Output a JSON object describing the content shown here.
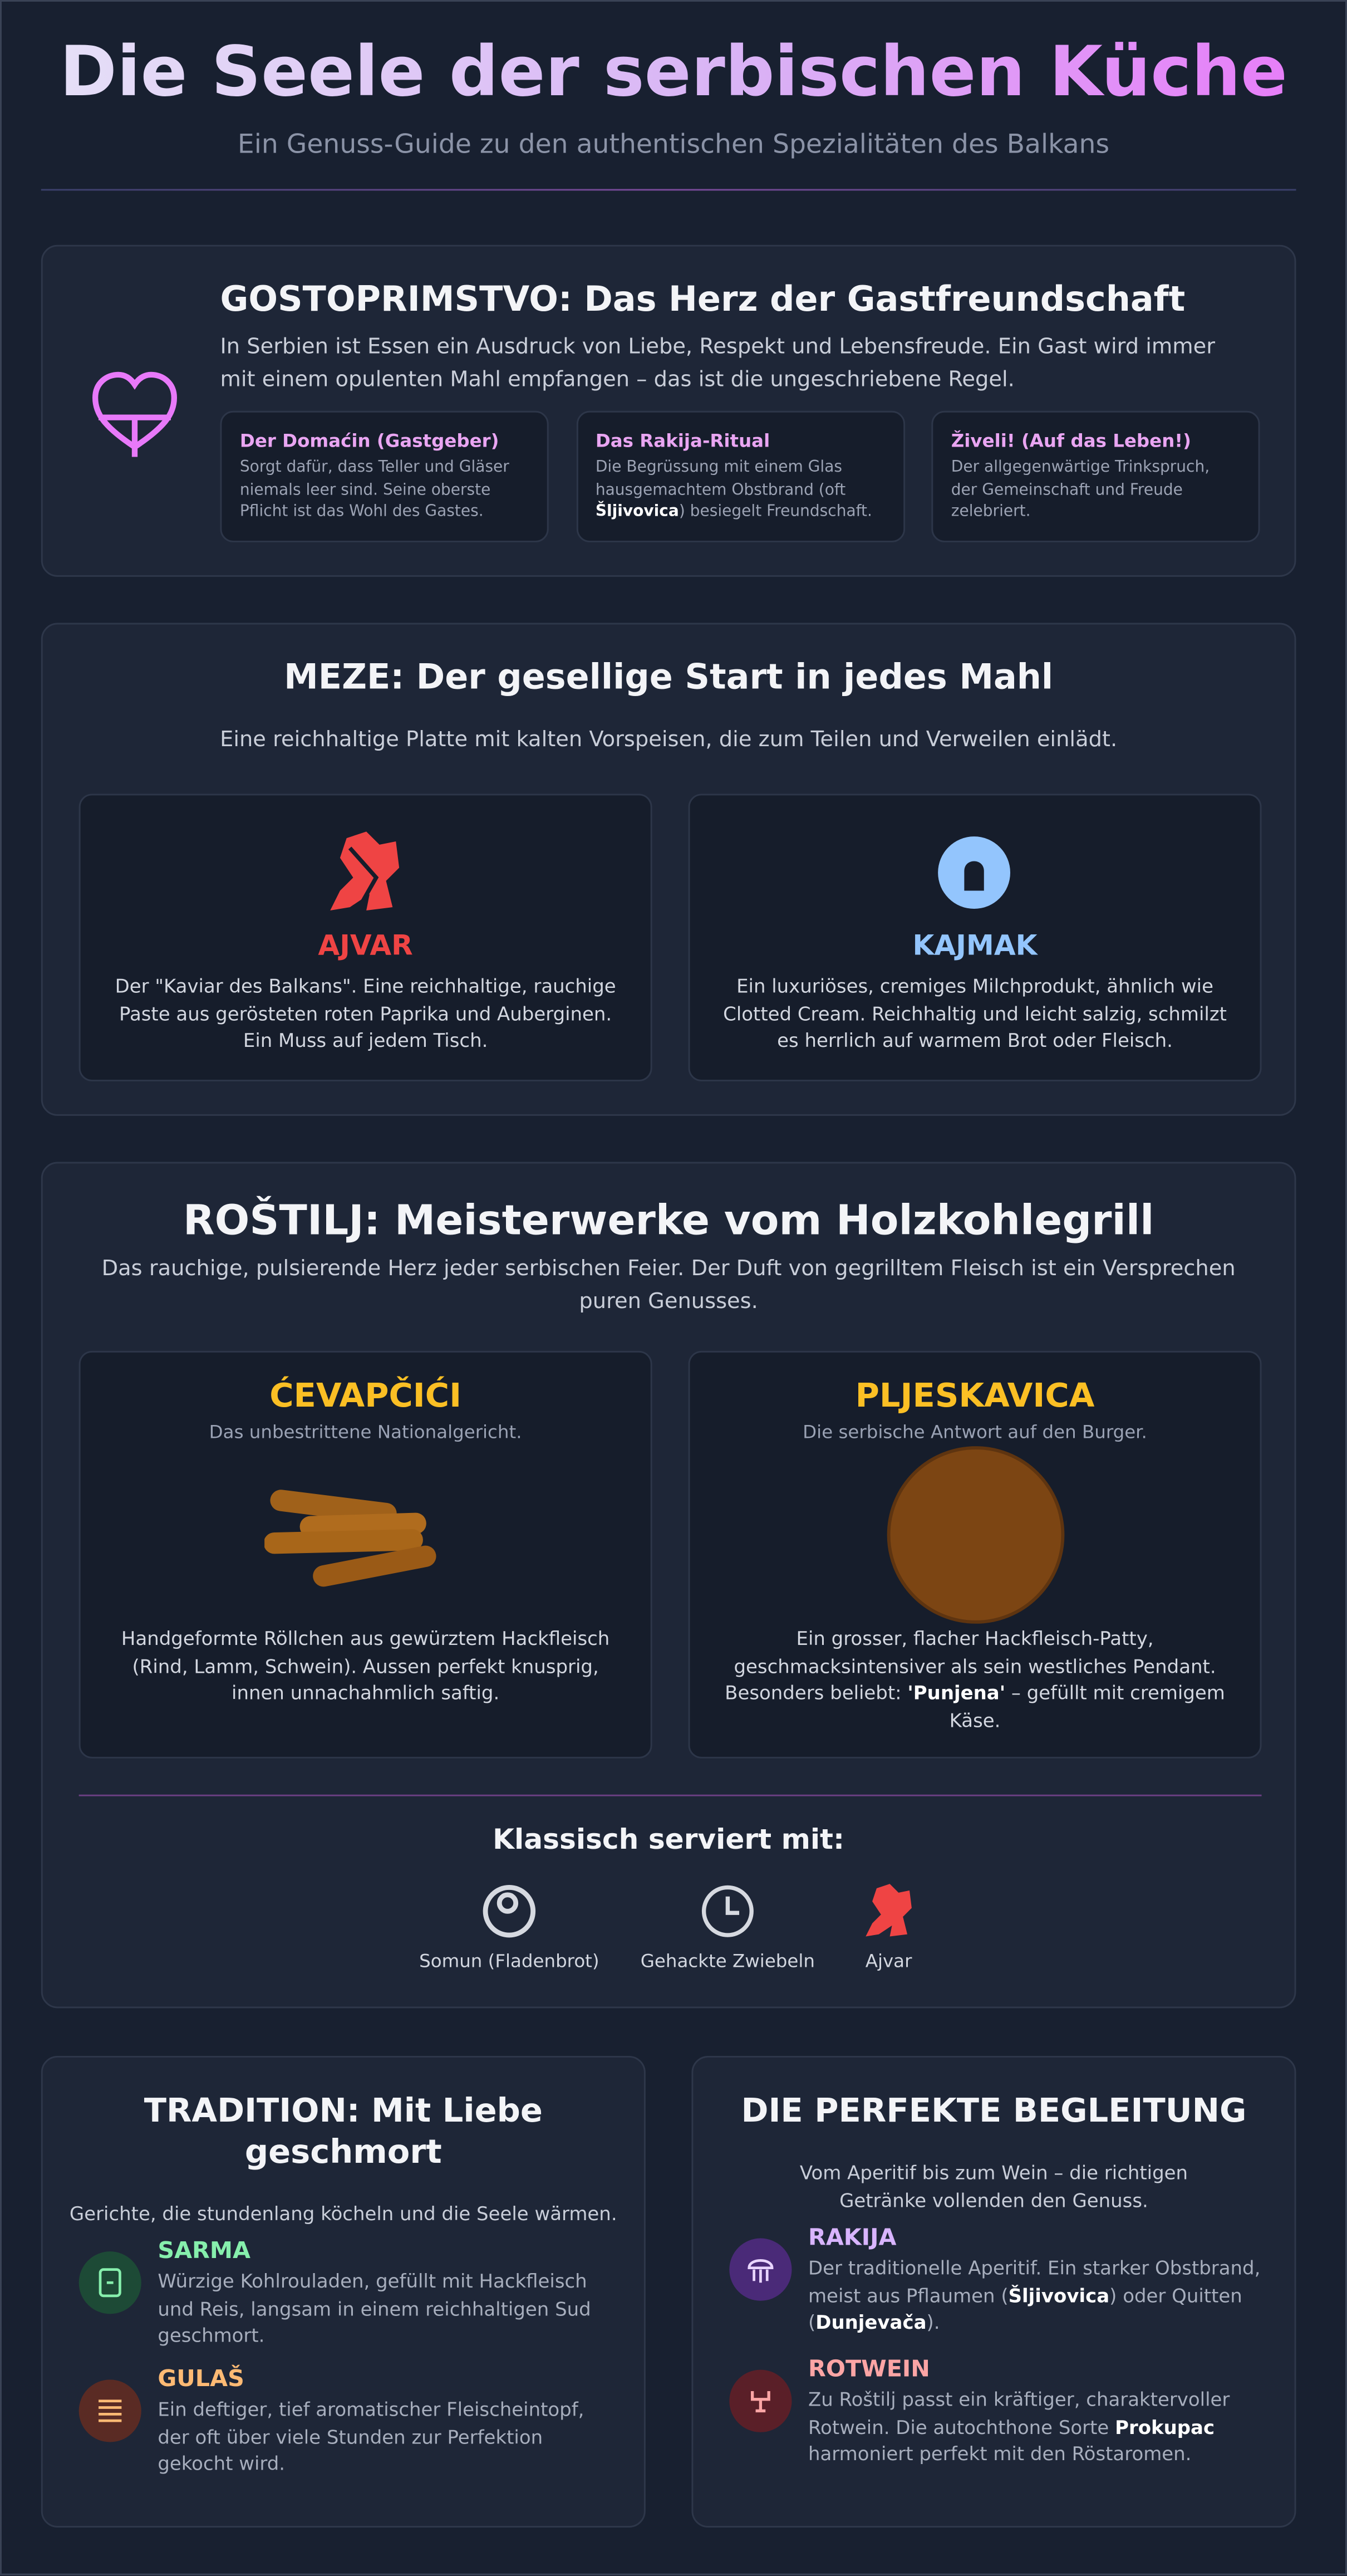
{
  "header": {
    "title": "Die Seele der serbischen Küche",
    "subtitle": "Ein Genuss-Guide zu den authentischen Spezialitäten des Balkans"
  },
  "hospitality": {
    "title": "GOSTOPRIMSTVO: Das Herz der Gastfreundschaft",
    "text": "In Serbien ist Essen ein Ausdruck von Liebe, Respekt und Lebensfreude. Ein Gast wird immer mit einem opulenten Mahl empfangen – das ist die ungeschriebene Regel.",
    "cards": [
      {
        "title": "Der Domaćin (Gastgeber)",
        "parts": [
          "Sorgt dafür, dass Teller und Gläser niemals leer sind. Seine oberste Pflicht ist das Wohl des Gastes."
        ]
      },
      {
        "title": "Das Rakija-Ritual",
        "parts": [
          "Die Begrüssung mit einem Glas hausgemachtem Obstbrand (oft ",
          "Šljivovica",
          ") besiegelt Freundschaft."
        ]
      },
      {
        "title": "Živeli! (Auf das Leben!)",
        "parts": [
          "Der allgegenwärtige Trinkspruch, der Gemeinschaft und Freude zelebriert."
        ]
      }
    ]
  },
  "meze": {
    "title": "MEZE: Der gesellige Start in jedes Mahl",
    "subtitle": "Eine reichhaltige Platte mit kalten Vorspeisen, die zum Teilen und Verweilen einlädt.",
    "items": [
      {
        "name": "AJVAR",
        "text": "Der \"Kaviar des Balkans\". Eine reichhaltige, rauchige Paste aus gerösteten roten Paprika und Auberginen. Ein Muss auf jedem Tisch."
      },
      {
        "name": "KAJMAK",
        "text": "Ein luxuriöses, cremiges Milchprodukt, ähnlich wie Clotted Cream. Reichhaltig und leicht salzig, schmilzt es herrlich auf warmem Brot oder Fleisch."
      }
    ]
  },
  "rostilj": {
    "title": "ROŠTILJ: Meisterwerke vom Holzkohlegrill",
    "subtitle": "Das rauchige, pulsierende Herz jeder serbischen Feier. Der Duft von gegrilltem Fleisch ist ein Versprechen puren Genusses.",
    "items": [
      {
        "name": "ĆEVAPČIĆI",
        "tagline": "Das unbestrittene Nationalgericht.",
        "parts": [
          "Handgeformte Röllchen aus gewürztem Hackfleisch (Rind, Lamm, Schwein). Aussen perfekt knusprig, innen unnachahmlich saftig."
        ]
      },
      {
        "name": "PLJESKAVICA",
        "tagline": "Die serbische Antwort auf den Burger.",
        "parts": [
          "Ein grosser, flacher Hackfleisch-Patty, geschmacksintensiver als sein westliches Pendant. Besonders beliebt: ",
          "'Punjena'",
          " – gefüllt mit cremigem Käse."
        ]
      }
    ],
    "served": {
      "title": "Klassisch serviert mit:",
      "items": [
        "Somun (Fladenbrot)",
        "Gehackte Zwiebeln",
        "Ajvar"
      ]
    }
  },
  "tradition": {
    "title": "TRADITION: Mit Liebe geschmort",
    "subtitle": "Gerichte, die stundenlang köcheln und die Seele wärmen.",
    "items": [
      {
        "name": "SARMA",
        "parts": [
          "Würzige Kohlrouladen, gefüllt mit Hackfleisch und Reis, langsam in einem reichhaltigen Sud geschmort."
        ]
      },
      {
        "name": "GULAŠ",
        "parts": [
          "Ein deftiger, tief aromatischer Fleischeintopf, der oft über viele Stunden zur Perfektion gekocht wird."
        ]
      }
    ]
  },
  "drinks": {
    "title": "DIE PERFEKTE BEGLEITUNG",
    "subtitle": "Vom Aperitif bis zum Wein – die richtigen Getränke vollenden den Genuss.",
    "items": [
      {
        "name": "RAKIJA",
        "parts": [
          "Der traditionelle Aperitif. Ein starker Obstbrand, meist aus Pflaumen (",
          "Šljivovica",
          ") oder Quitten (",
          "Dunjevača",
          ")."
        ]
      },
      {
        "name": "ROTWEIN",
        "parts": [
          "Zu Roštilj passt ein kräftiger, charaktervoller Rotwein. Die autochthone Sorte ",
          "Prokupac",
          " harmoniert perfekt mit den Röstaromen."
        ]
      }
    ]
  }
}
